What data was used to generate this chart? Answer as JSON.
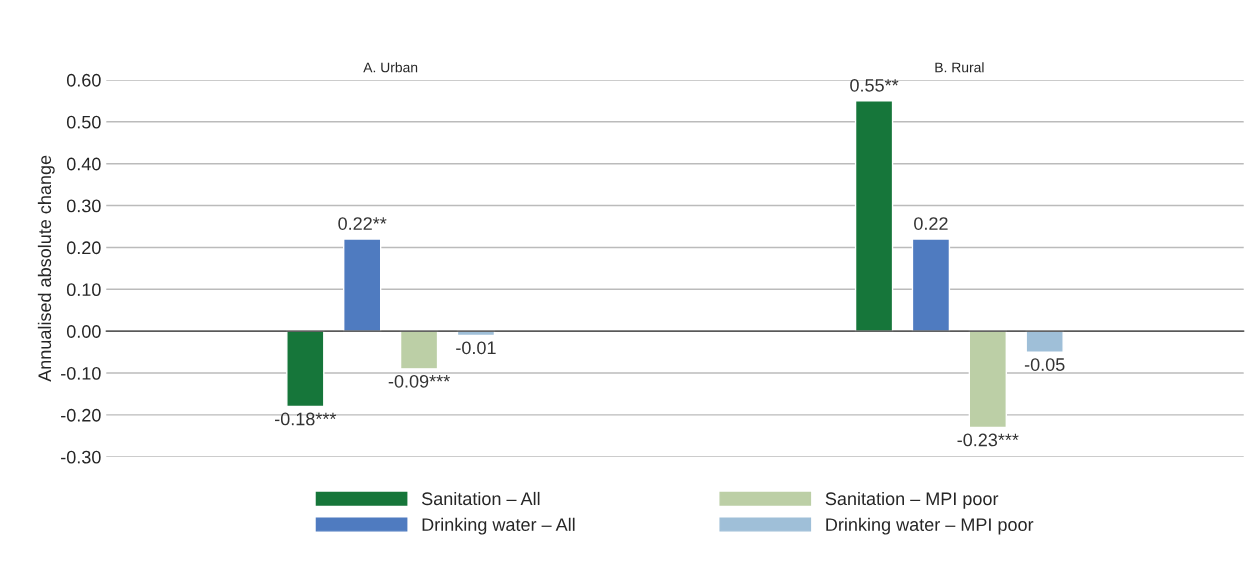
{
  "chart_data": {
    "type": "bar",
    "ylabel": "Annualised absolute change",
    "categories": [
      "A. Urban",
      "B. Rural"
    ],
    "series": [
      {
        "name": "Sanitation – All",
        "color": "#16763a",
        "values": [
          -0.18,
          0.55
        ],
        "value_labels": [
          "-0.18***",
          "0.55**"
        ]
      },
      {
        "name": "Drinking water – All",
        "color": "#4f7bc0",
        "values": [
          0.22,
          0.22
        ],
        "value_labels": [
          "0.22**",
          "0.22"
        ]
      },
      {
        "name": "Sanitation – MPI poor",
        "color": "#bccfa6",
        "values": [
          -0.09,
          -0.23
        ],
        "value_labels": [
          "-0.09***",
          "-0.23***"
        ]
      },
      {
        "name": "Drinking water – MPI poor",
        "color": "#9fbfd8",
        "values": [
          -0.01,
          -0.05
        ],
        "value_labels": [
          "-0.01",
          "-0.05"
        ]
      }
    ],
    "ylim": [
      -0.3,
      0.6
    ],
    "yticks": [
      {
        "value": -0.3,
        "label": "-0.30"
      },
      {
        "value": -0.2,
        "label": "-0.20"
      },
      {
        "value": -0.1,
        "label": "-0.10"
      },
      {
        "value": 0,
        "label": "0.00"
      },
      {
        "value": 0.1,
        "label": "0.10"
      },
      {
        "value": 0.2,
        "label": "0.20"
      },
      {
        "value": 0.3,
        "label": "0.30"
      },
      {
        "value": 0.4,
        "label": "0.40"
      },
      {
        "value": 0.5,
        "label": "0.50"
      },
      {
        "value": 0.6,
        "label": "0.60"
      }
    ],
    "grid": "y",
    "legend": "bottom"
  }
}
